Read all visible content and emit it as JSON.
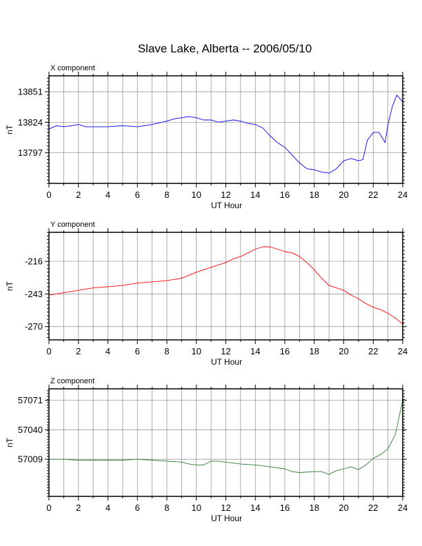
{
  "title": "Slave Lake, Alberta -- 2006/05/10",
  "chart_data": [
    {
      "type": "line",
      "panel_label": "X component",
      "xlabel": "UT Hour",
      "ylabel": "nT",
      "xlim": [
        0,
        24
      ],
      "ylim": [
        13770,
        13865
      ],
      "x_ticks": [
        0,
        2,
        4,
        6,
        8,
        10,
        12,
        14,
        16,
        18,
        20,
        22,
        24
      ],
      "y_ticks": [
        13797,
        13824,
        13851
      ],
      "grid": true,
      "color": "#0000ff",
      "x": [
        0,
        0.5,
        1,
        1.5,
        2,
        2.5,
        3,
        4,
        5,
        6,
        7,
        8,
        8.5,
        9,
        9.5,
        10,
        10.5,
        11,
        11.5,
        12,
        12.5,
        13,
        13.5,
        14,
        14.5,
        15,
        15.5,
        16,
        16.5,
        17,
        17.5,
        18,
        18.5,
        19,
        19.5,
        20,
        20.5,
        21,
        21.3,
        21.6,
        22,
        22.4,
        22.8,
        23,
        23.3,
        23.6,
        24
      ],
      "y": [
        13818,
        13821,
        13820,
        13821,
        13822,
        13820,
        13820,
        13820,
        13821,
        13820,
        13822,
        13825,
        13827,
        13828,
        13829,
        13828,
        13826,
        13826,
        13824,
        13825,
        13826,
        13825,
        13823,
        13822,
        13819,
        13812,
        13806,
        13802,
        13795,
        13788,
        13783,
        13782,
        13780,
        13779,
        13783,
        13790,
        13792,
        13790,
        13791,
        13808,
        13815,
        13815,
        13806,
        13822,
        13838,
        13848,
        13842
      ]
    },
    {
      "type": "line",
      "panel_label": "Y component",
      "xlabel": "UT Hour",
      "ylabel": "nT",
      "xlim": [
        0,
        24
      ],
      "ylim": [
        -281,
        -192
      ],
      "x_ticks": [
        0,
        2,
        4,
        6,
        8,
        10,
        12,
        14,
        16,
        18,
        20,
        22,
        24
      ],
      "y_ticks": [
        -216,
        -243,
        -270
      ],
      "grid": true,
      "color": "#ff0000",
      "x": [
        0,
        1,
        2,
        3,
        4,
        5,
        6,
        7,
        8,
        9,
        10,
        10.5,
        11,
        11.5,
        12,
        12.5,
        13,
        13.5,
        14,
        14.5,
        15,
        15.5,
        16,
        16.5,
        17,
        17.5,
        18,
        18.5,
        19,
        19.5,
        20,
        20.5,
        21,
        21.5,
        22,
        22.5,
        23,
        23.5,
        24
      ],
      "y": [
        -244,
        -242,
        -240,
        -238,
        -237,
        -236,
        -234,
        -233,
        -232,
        -230,
        -225,
        -223,
        -221,
        -219,
        -217,
        -214,
        -212,
        -209,
        -206,
        -204,
        -204,
        -206,
        -208,
        -209,
        -212,
        -217,
        -223,
        -230,
        -236,
        -238,
        -240,
        -244,
        -247,
        -251,
        -254,
        -256,
        -259,
        -263,
        -268
      ]
    },
    {
      "type": "line",
      "panel_label": "Z component",
      "xlabel": "UT Hour",
      "ylabel": "nT",
      "xlim": [
        0,
        24
      ],
      "ylim": [
        56970,
        57083
      ],
      "x_ticks": [
        0,
        2,
        4,
        6,
        8,
        10,
        12,
        14,
        16,
        18,
        20,
        22,
        24
      ],
      "y_ticks": [
        57009,
        57040,
        57071
      ],
      "grid": true,
      "color": "#2e7d32",
      "x": [
        0,
        1,
        2,
        3,
        4,
        5,
        6,
        7,
        8,
        9,
        9.5,
        10,
        10.5,
        11,
        11.5,
        12,
        12.5,
        13,
        14,
        15,
        16,
        16.5,
        17,
        18,
        18.5,
        19,
        19.5,
        20,
        20.5,
        21,
        21.5,
        22,
        22.5,
        23,
        23.5,
        24
      ],
      "y": [
        57009,
        57009,
        57008,
        57008,
        57008,
        57008,
        57009,
        57008,
        57007,
        57006,
        57004,
        57003,
        57003,
        57007,
        57007,
        57006,
        57005,
        57004,
        57003,
        57001,
        56999,
        56996,
        56995,
        56996,
        56996,
        56993,
        56997,
        56999,
        57001,
        56998,
        57003,
        57010,
        57014,
        57020,
        57035,
        57071
      ]
    }
  ]
}
